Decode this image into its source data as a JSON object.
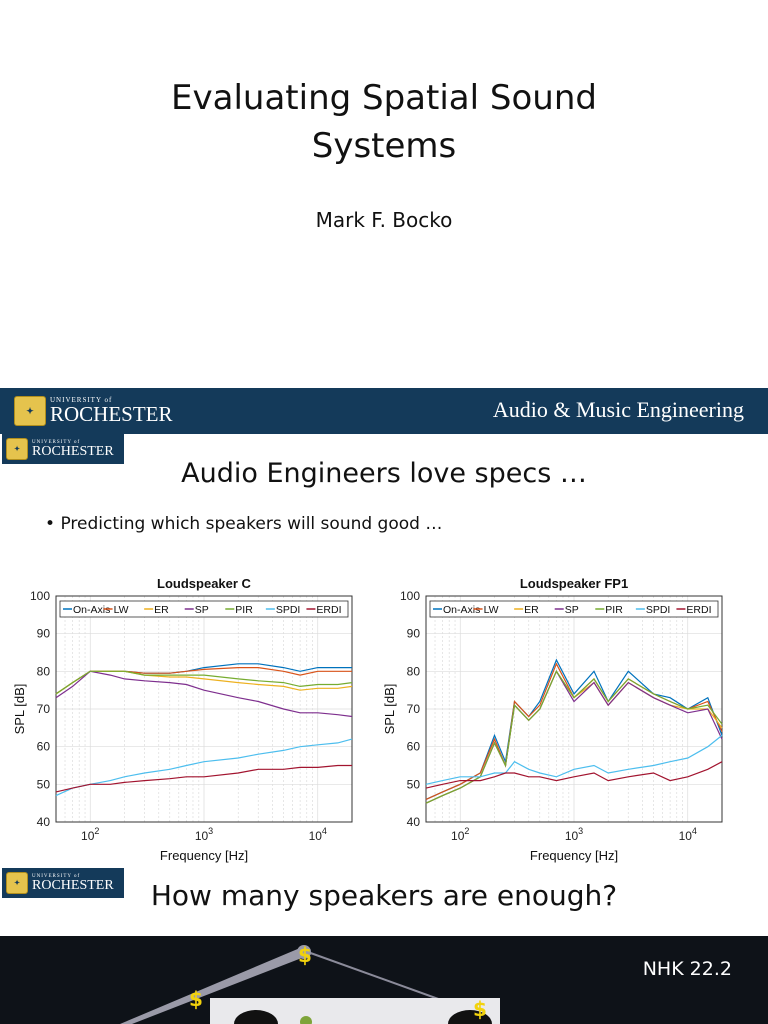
{
  "slide1": {
    "title_line1": "Evaluating Spatial Sound",
    "title_line2": "Systems",
    "author": "Mark F. Bocko"
  },
  "banner": {
    "logo_small": "UNIVERSITY of",
    "logo_big": "ROCHESTER",
    "right_text": "Audio & Music Engineering"
  },
  "slide2": {
    "title": "Audio Engineers love specs …",
    "bullet": "Predicting which speakers will sound good …"
  },
  "slide3": {
    "title": "How many speakers are enough?",
    "label": "NHK 22.2"
  },
  "colors": {
    "banner": "#143a5a",
    "On-Axis": "#0072bd",
    "LW": "#d95319",
    "ER": "#edb120",
    "SP": "#7e2f8e",
    "PIR": "#77ac30",
    "SPDI": "#4dbeee",
    "ERDI": "#a2142f"
  },
  "chart_data": [
    {
      "type": "line",
      "title": "Loudspeaker C",
      "xlabel": "Frequency [Hz]",
      "ylabel": "SPL [dB]",
      "xscale": "log",
      "xlim": [
        50,
        20000
      ],
      "ylim": [
        40,
        100
      ],
      "yticks": [
        40,
        50,
        60,
        70,
        80,
        90,
        100
      ],
      "xtick_labels": [
        "10^2",
        "10^3",
        "10^4"
      ],
      "grid": true,
      "legend": "top",
      "series": [
        {
          "name": "On-Axis",
          "x": [
            50,
            70,
            100,
            150,
            200,
            300,
            500,
            700,
            1000,
            2000,
            3000,
            5000,
            7000,
            10000,
            15000,
            20000
          ],
          "y": [
            74,
            77,
            80,
            80,
            80,
            79.5,
            79.5,
            80,
            81,
            82,
            82,
            81,
            80,
            81,
            81,
            81
          ]
        },
        {
          "name": "LW",
          "x": [
            50,
            70,
            100,
            150,
            200,
            300,
            500,
            700,
            1000,
            2000,
            3000,
            5000,
            7000,
            10000,
            15000,
            20000
          ],
          "y": [
            74,
            77,
            80,
            80,
            80,
            79.5,
            79.5,
            80,
            80.5,
            81,
            81,
            80,
            79,
            80,
            80,
            80
          ]
        },
        {
          "name": "ER",
          "x": [
            50,
            70,
            100,
            150,
            200,
            300,
            500,
            700,
            1000,
            2000,
            3000,
            5000,
            7000,
            10000,
            15000,
            20000
          ],
          "y": [
            74,
            77,
            80,
            80,
            80,
            79,
            78.5,
            78.5,
            78,
            77,
            76.5,
            76,
            75,
            75.5,
            75.5,
            76
          ]
        },
        {
          "name": "SP",
          "x": [
            50,
            70,
            100,
            150,
            200,
            300,
            500,
            700,
            1000,
            2000,
            3000,
            5000,
            7000,
            10000,
            15000,
            20000
          ],
          "y": [
            73,
            76,
            80,
            79,
            78,
            77.5,
            77,
            76.5,
            75,
            73,
            72,
            70,
            69,
            69,
            68.5,
            68
          ]
        },
        {
          "name": "PIR",
          "x": [
            50,
            70,
            100,
            150,
            200,
            300,
            500,
            700,
            1000,
            2000,
            3000,
            5000,
            7000,
            10000,
            15000,
            20000
          ],
          "y": [
            74,
            77,
            80,
            80,
            80,
            79,
            79,
            79,
            79,
            78,
            77.5,
            77,
            76,
            76.5,
            76.5,
            77
          ]
        },
        {
          "name": "SPDI",
          "x": [
            50,
            70,
            100,
            150,
            200,
            300,
            500,
            700,
            1000,
            2000,
            3000,
            5000,
            7000,
            10000,
            15000,
            20000
          ],
          "y": [
            47,
            49,
            50,
            51,
            52,
            53,
            54,
            55,
            56,
            57,
            58,
            59,
            60,
            60.5,
            61,
            62
          ]
        },
        {
          "name": "ERDI",
          "x": [
            50,
            70,
            100,
            150,
            200,
            300,
            500,
            700,
            1000,
            2000,
            3000,
            5000,
            7000,
            10000,
            15000,
            20000
          ],
          "y": [
            48,
            49,
            50,
            50,
            50.5,
            51,
            51.5,
            52,
            52,
            53,
            54,
            54,
            54.5,
            54.5,
            55,
            55
          ]
        }
      ]
    },
    {
      "type": "line",
      "title": "Loudspeaker FP1",
      "xlabel": "Frequency [Hz]",
      "ylabel": "SPL [dB]",
      "xscale": "log",
      "xlim": [
        50,
        20000
      ],
      "ylim": [
        40,
        100
      ],
      "yticks": [
        40,
        50,
        60,
        70,
        80,
        90,
        100
      ],
      "xtick_labels": [
        "10^2",
        "10^3",
        "10^4"
      ],
      "grid": true,
      "legend": "top",
      "series": [
        {
          "name": "On-Axis",
          "x": [
            50,
            70,
            100,
            150,
            200,
            250,
            300,
            400,
            500,
            700,
            1000,
            1500,
            2000,
            3000,
            5000,
            7000,
            10000,
            15000,
            20000
          ],
          "y": [
            46,
            48,
            50,
            53,
            63,
            56,
            72,
            68,
            72,
            83,
            74,
            80,
            72,
            80,
            74,
            73,
            70,
            73,
            63
          ]
        },
        {
          "name": "LW",
          "x": [
            50,
            70,
            100,
            150,
            200,
            250,
            300,
            400,
            500,
            700,
            1000,
            1500,
            2000,
            3000,
            5000,
            7000,
            10000,
            15000,
            20000
          ],
          "y": [
            46,
            48,
            50,
            53,
            62,
            55,
            72,
            68,
            71,
            82,
            73,
            78,
            72,
            78,
            74,
            72,
            70,
            72,
            64
          ]
        },
        {
          "name": "ER",
          "x": [
            50,
            70,
            100,
            150,
            200,
            250,
            300,
            400,
            500,
            700,
            1000,
            1500,
            2000,
            3000,
            5000,
            7000,
            10000,
            15000,
            20000
          ],
          "y": [
            45,
            47,
            49,
            52,
            61,
            55,
            71,
            67,
            70,
            80,
            73,
            77,
            71,
            77,
            73,
            71,
            70,
            70,
            65
          ]
        },
        {
          "name": "SP",
          "x": [
            50,
            70,
            100,
            150,
            200,
            250,
            300,
            400,
            500,
            700,
            1000,
            1500,
            2000,
            3000,
            5000,
            7000,
            10000,
            15000,
            20000
          ],
          "y": [
            45,
            47,
            49,
            52,
            61,
            55,
            71,
            67,
            70,
            80,
            72,
            77,
            71,
            77,
            73,
            71,
            69,
            70,
            62
          ]
        },
        {
          "name": "PIR",
          "x": [
            50,
            70,
            100,
            150,
            200,
            250,
            300,
            400,
            500,
            700,
            1000,
            1500,
            2000,
            3000,
            5000,
            7000,
            10000,
            15000,
            20000
          ],
          "y": [
            45,
            47,
            49,
            52,
            61,
            55,
            71,
            67,
            70,
            80,
            73,
            78,
            72,
            78,
            74,
            72,
            70,
            71,
            66
          ]
        },
        {
          "name": "SPDI",
          "x": [
            50,
            70,
            100,
            150,
            200,
            250,
            300,
            400,
            500,
            700,
            1000,
            1500,
            2000,
            3000,
            5000,
            7000,
            10000,
            15000,
            20000
          ],
          "y": [
            50,
            51,
            52,
            52,
            53,
            53,
            56,
            54,
            53,
            52,
            54,
            55,
            53,
            54,
            55,
            56,
            57,
            60,
            63
          ]
        },
        {
          "name": "ERDI",
          "x": [
            50,
            70,
            100,
            150,
            200,
            250,
            300,
            400,
            500,
            700,
            1000,
            1500,
            2000,
            3000,
            5000,
            7000,
            10000,
            15000,
            20000
          ],
          "y": [
            49,
            50,
            51,
            51,
            52,
            53,
            53,
            52,
            52,
            51,
            52,
            53,
            51,
            52,
            53,
            51,
            52,
            54,
            56
          ]
        }
      ]
    }
  ]
}
